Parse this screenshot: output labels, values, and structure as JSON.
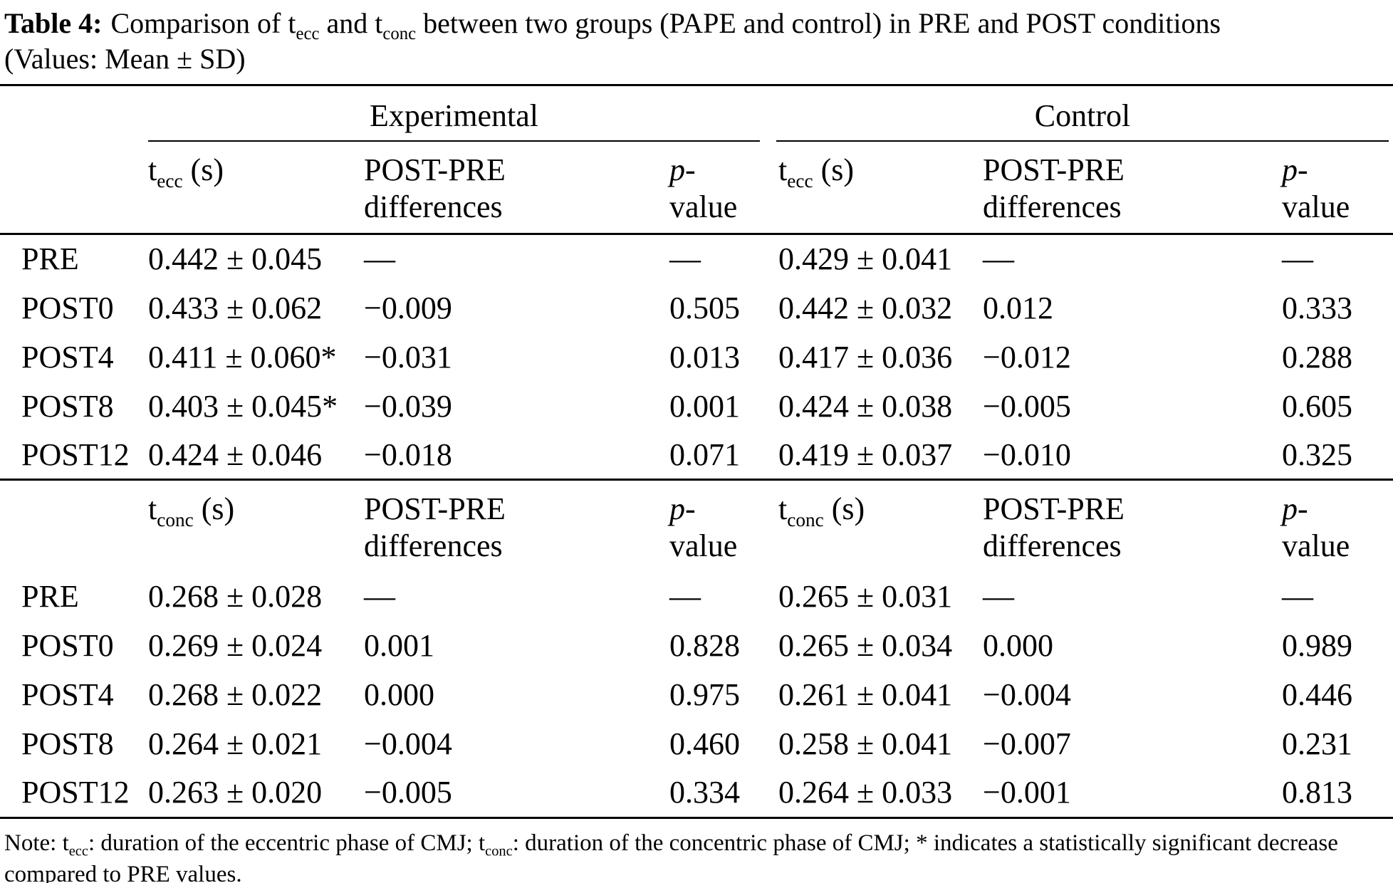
{
  "title": {
    "prefix": "Table 4:",
    "seg1": "Comparison of t",
    "sub1": "ecc",
    "seg2": " and t",
    "sub2": "conc",
    "seg3": " between two groups (PAPE and control) in PRE and POST conditions",
    "line2": "(Values: Mean ± SD)"
  },
  "header": {
    "group1": "Experimental",
    "group2": "Control",
    "diff_line1": "POST-PRE",
    "diff_line2": "differences",
    "p_italic": "p",
    "p_dash": "-",
    "p_line2": "value"
  },
  "blocks": [
    {
      "measure": {
        "base": "t",
        "sub": "ecc",
        "unit": " (s)"
      },
      "rows": [
        {
          "label": "PRE",
          "exp_value": "0.442 ± 0.045",
          "exp_diff": "—",
          "exp_p": "—",
          "ctrl_value": "0.429 ± 0.041",
          "ctrl_diff": "—",
          "ctrl_p": "—"
        },
        {
          "label": "POST0",
          "exp_value": "0.433 ± 0.062",
          "exp_diff": "−0.009",
          "exp_p": "0.505",
          "ctrl_value": "0.442 ± 0.032",
          "ctrl_diff": "0.012",
          "ctrl_p": "0.333"
        },
        {
          "label": "POST4",
          "exp_value": "0.411 ± 0.060*",
          "exp_diff": "−0.031",
          "exp_p": "0.013",
          "ctrl_value": "0.417 ± 0.036",
          "ctrl_diff": "−0.012",
          "ctrl_p": "0.288"
        },
        {
          "label": "POST8",
          "exp_value": "0.403 ± 0.045*",
          "exp_diff": "−0.039",
          "exp_p": "0.001",
          "ctrl_value": "0.424 ± 0.038",
          "ctrl_diff": "−0.005",
          "ctrl_p": "0.605"
        },
        {
          "label": "POST12",
          "exp_value": "0.424 ± 0.046",
          "exp_diff": "−0.018",
          "exp_p": "0.071",
          "ctrl_value": "0.419 ± 0.037",
          "ctrl_diff": "−0.010",
          "ctrl_p": "0.325"
        }
      ]
    },
    {
      "measure": {
        "base": "t",
        "sub": "conc",
        "unit": " (s)"
      },
      "rows": [
        {
          "label": "PRE",
          "exp_value": "0.268 ± 0.028",
          "exp_diff": "—",
          "exp_p": "—",
          "ctrl_value": "0.265 ± 0.031",
          "ctrl_diff": "—",
          "ctrl_p": "—"
        },
        {
          "label": "POST0",
          "exp_value": "0.269 ± 0.024",
          "exp_diff": "0.001",
          "exp_p": "0.828",
          "ctrl_value": "0.265 ± 0.034",
          "ctrl_diff": "0.000",
          "ctrl_p": "0.989"
        },
        {
          "label": "POST4",
          "exp_value": "0.268 ± 0.022",
          "exp_diff": "0.000",
          "exp_p": "0.975",
          "ctrl_value": "0.261 ± 0.041",
          "ctrl_diff": "−0.004",
          "ctrl_p": "0.446"
        },
        {
          "label": "POST8",
          "exp_value": "0.264 ± 0.021",
          "exp_diff": "−0.004",
          "exp_p": "0.460",
          "ctrl_value": "0.258 ± 0.041",
          "ctrl_diff": "−0.007",
          "ctrl_p": "0.231"
        },
        {
          "label": "POST12",
          "exp_value": "0.263 ± 0.020",
          "exp_diff": "−0.005",
          "exp_p": "0.334",
          "ctrl_value": "0.264 ± 0.033",
          "ctrl_diff": "−0.001",
          "ctrl_p": "0.813"
        }
      ]
    }
  ],
  "note": {
    "seg1": "Note: t",
    "sub1": "ecc",
    "seg2": ": duration of the eccentric phase of CMJ; t",
    "sub2": "conc",
    "seg3": ": duration of the concentric phase of CMJ; * indicates a statistically significant decrease compared to PRE values."
  },
  "colors": {
    "text": "#000000",
    "background": "#ffffff",
    "rule": "#000000"
  }
}
